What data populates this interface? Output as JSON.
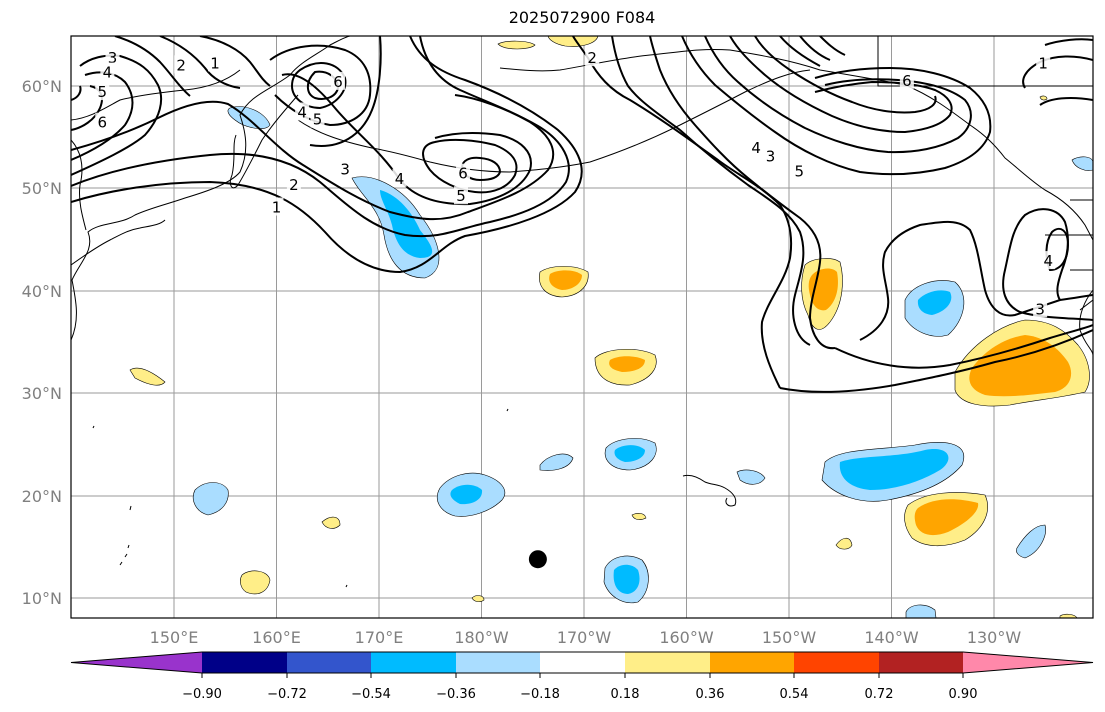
{
  "title": "2025072900 F084",
  "map": {
    "lon_range": [
      140,
      240
    ],
    "lat_range": [
      8,
      65
    ],
    "lon_ticks": [
      {
        "value": 150,
        "label": "150°E"
      },
      {
        "value": 160,
        "label": "160°E"
      },
      {
        "value": 170,
        "label": "170°E"
      },
      {
        "value": 180,
        "label": "180°W"
      },
      {
        "value": 190,
        "label": "170°W"
      },
      {
        "value": 200,
        "label": "160°W"
      },
      {
        "value": 210,
        "label": "150°W"
      },
      {
        "value": 220,
        "label": "140°W"
      },
      {
        "value": 230,
        "label": "130°W"
      }
    ],
    "lat_ticks": [
      {
        "value": 10,
        "label": "10°N"
      },
      {
        "value": 20,
        "label": "20°N"
      },
      {
        "value": 30,
        "label": "30°N"
      },
      {
        "value": 40,
        "label": "40°N"
      },
      {
        "value": 50,
        "label": "50°N"
      },
      {
        "value": 60,
        "label": "60°N"
      }
    ],
    "grid": true,
    "storm_marker": {
      "lon": 185.5,
      "lat": 13.8
    },
    "contour_labels": [
      {
        "text": "3",
        "lon": 144.0,
        "lat": 62.8
      },
      {
        "text": "2",
        "lon": 150.7,
        "lat": 62.1
      },
      {
        "text": "1",
        "lon": 154.0,
        "lat": 62.3
      },
      {
        "text": "4",
        "lon": 143.5,
        "lat": 61.4
      },
      {
        "text": "5",
        "lon": 143.0,
        "lat": 59.5
      },
      {
        "text": "6",
        "lon": 143.0,
        "lat": 56.5
      },
      {
        "text": "6",
        "lon": 166.0,
        "lat": 60.5
      },
      {
        "text": "5",
        "lon": 164.0,
        "lat": 56.8
      },
      {
        "text": "4",
        "lon": 162.5,
        "lat": 57.5
      },
      {
        "text": "3",
        "lon": 166.7,
        "lat": 51.9
      },
      {
        "text": "2",
        "lon": 161.7,
        "lat": 50.4
      },
      {
        "text": "1",
        "lon": 160.0,
        "lat": 48.2
      },
      {
        "text": "4",
        "lon": 172.0,
        "lat": 51.0
      },
      {
        "text": "6",
        "lon": 178.2,
        "lat": 51.5
      },
      {
        "text": "5",
        "lon": 178.0,
        "lat": 49.3
      },
      {
        "text": "2",
        "lon": 190.8,
        "lat": 62.8
      },
      {
        "text": "4",
        "lon": 206.8,
        "lat": 54.0
      },
      {
        "text": "3",
        "lon": 208.2,
        "lat": 53.2
      },
      {
        "text": "5",
        "lon": 211.0,
        "lat": 51.7
      },
      {
        "text": "6",
        "lon": 221.5,
        "lat": 60.6
      },
      {
        "text": "1",
        "lon": 234.8,
        "lat": 62.3
      },
      {
        "text": "4",
        "lon": 235.3,
        "lat": 43.0
      },
      {
        "text": "3",
        "lon": 234.5,
        "lat": 38.3
      }
    ]
  },
  "colorbar": {
    "levels": [
      -0.9,
      -0.72,
      -0.54,
      -0.36,
      -0.18,
      0.18,
      0.36,
      0.54,
      0.72,
      0.9
    ],
    "tick_labels": [
      "−0.90",
      "−0.72",
      "−0.54",
      "−0.36",
      "−0.18",
      "0.18",
      "0.36",
      "0.54",
      "0.72",
      "0.90"
    ],
    "colors": [
      "#9933cc",
      "#000088",
      "#3355cc",
      "#00bbff",
      "#aaddff",
      "#ffffff",
      "#ffee88",
      "#ffa500",
      "#ff4400",
      "#b22222",
      "#ff88aa"
    ]
  },
  "colors": {
    "light_blue": "#aaddff",
    "blue": "#00bbff",
    "light_yellow": "#ffee88",
    "orange": "#ffa500"
  }
}
